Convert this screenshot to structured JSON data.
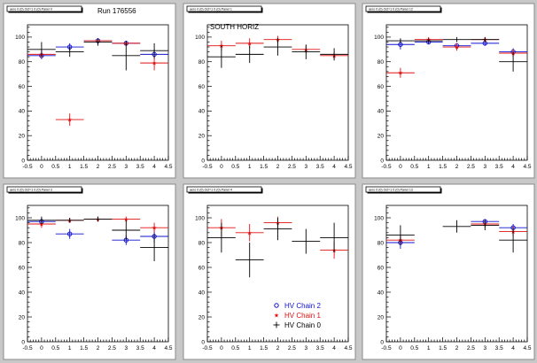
{
  "chart_data": [
    {
      "type": "scatter",
      "title": "aero 0 (0) Oct=1 0 (0) Panel 0",
      "annotation": "Run 176556",
      "xlim": [
        -0.5,
        4.5
      ],
      "ylim": [
        0,
        110
      ],
      "xticks": [
        "-0.5",
        "0",
        "0.5",
        "1",
        "1.5",
        "2",
        "2.5",
        "3",
        "3.5",
        "4",
        "4.5"
      ],
      "yticks": [
        "0",
        "20",
        "40",
        "60",
        "80",
        "100"
      ],
      "series": [
        {
          "name": "HV Chain 2",
          "color": "#1010d0",
          "marker": "circle",
          "points": [
            {
              "x": 0,
              "y": 85,
              "ex": 0.5,
              "ey": 3
            },
            {
              "x": 1,
              "y": 92,
              "ex": 0.5,
              "ey": 3
            },
            {
              "x": 2,
              "y": 97,
              "ex": 0.5,
              "ey": 2
            },
            {
              "x": 3,
              "y": 95,
              "ex": 0.5,
              "ey": 2
            },
            {
              "x": 4,
              "y": 86,
              "ex": 0.5,
              "ey": 4
            }
          ]
        },
        {
          "name": "HV Chain 1",
          "color": "#e01010",
          "marker": "star",
          "points": [
            {
              "x": 0,
              "y": 86,
              "ex": 0.5,
              "ey": 3
            },
            {
              "x": 1,
              "y": 33,
              "ex": 0.5,
              "ey": 5
            },
            {
              "x": 2,
              "y": 97,
              "ex": 0.5,
              "ey": 2
            },
            {
              "x": 3,
              "y": 95,
              "ex": 0.5,
              "ey": 2
            },
            {
              "x": 4,
              "y": 79,
              "ex": 0.5,
              "ey": 6
            }
          ]
        },
        {
          "name": "HV Chain 0",
          "color": "#000000",
          "marker": "cross",
          "points": [
            {
              "x": 0,
              "y": 90,
              "ex": 0.5,
              "ey": 6
            },
            {
              "x": 1,
              "y": 88,
              "ex": 0.5,
              "ey": 4
            },
            {
              "x": 2,
              "y": 96,
              "ex": 0.5,
              "ey": 3
            },
            {
              "x": 3,
              "y": 85,
              "ex": 0.5,
              "ey": 12
            },
            {
              "x": 4,
              "y": 89,
              "ex": 0.5,
              "ey": 6
            }
          ]
        }
      ]
    },
    {
      "type": "scatter",
      "title": "aero 0 (0) Oct=1 0 (0) Panel 1",
      "annotation": "SOUTH HORIZ",
      "xlim": [
        -0.5,
        4.5
      ],
      "ylim": [
        0,
        110
      ],
      "xticks": [
        "-0.5",
        "0",
        "0.5",
        "1",
        "1.5",
        "2",
        "2.5",
        "3",
        "3.5",
        "4",
        "4.5"
      ],
      "yticks": [
        "0",
        "20",
        "40",
        "60",
        "80",
        "100"
      ],
      "series": [
        {
          "name": "HV Chain 1",
          "color": "#e01010",
          "marker": "star",
          "points": [
            {
              "x": 0,
              "y": 93,
              "ex": 0.5,
              "ey": 4
            },
            {
              "x": 1,
              "y": 95,
              "ex": 0.5,
              "ey": 4
            },
            {
              "x": 2,
              "y": 98,
              "ex": 0.5,
              "ey": 3
            },
            {
              "x": 3,
              "y": 90,
              "ex": 0.5,
              "ey": 3
            },
            {
              "x": 4,
              "y": 85,
              "ex": 0.5,
              "ey": 3
            }
          ]
        },
        {
          "name": "HV Chain 0",
          "color": "#000000",
          "marker": "cross",
          "points": [
            {
              "x": 0,
              "y": 84,
              "ex": 0.5,
              "ey": 9
            },
            {
              "x": 1,
              "y": 86,
              "ex": 0.5,
              "ey": 7
            },
            {
              "x": 2,
              "y": 92,
              "ex": 0.5,
              "ey": 7
            },
            {
              "x": 3,
              "y": 88,
              "ex": 0.5,
              "ey": 6
            },
            {
              "x": 4,
              "y": 86,
              "ex": 0.5,
              "ey": 5
            }
          ]
        }
      ]
    },
    {
      "type": "scatter",
      "title": "aero 0 (0) Oct=1 0 (0) Panel 12",
      "xlim": [
        -0.5,
        4.5
      ],
      "ylim": [
        0,
        110
      ],
      "xticks": [
        "-0.5",
        "0",
        "0.5",
        "1",
        "1.5",
        "2",
        "2.5",
        "3",
        "3.5",
        "4",
        "4.5"
      ],
      "yticks": [
        "0",
        "20",
        "40",
        "60",
        "80",
        "100"
      ],
      "series": [
        {
          "name": "HV Chain 2",
          "color": "#1010d0",
          "marker": "circle",
          "points": [
            {
              "x": 0,
              "y": 94,
              "ex": 0.5,
              "ey": 4
            },
            {
              "x": 1,
              "y": 96,
              "ex": 0.5,
              "ey": 2
            },
            {
              "x": 2,
              "y": 93,
              "ex": 0.5,
              "ey": 2
            },
            {
              "x": 3,
              "y": 95,
              "ex": 0.5,
              "ey": 2
            },
            {
              "x": 4,
              "y": 88,
              "ex": 0.5,
              "ey": 3
            }
          ]
        },
        {
          "name": "HV Chain 1",
          "color": "#e01010",
          "marker": "star",
          "points": [
            {
              "x": 0,
              "y": 71,
              "ex": 0.5,
              "ey": 4
            },
            {
              "x": 1,
              "y": 98,
              "ex": 0.5,
              "ey": 2
            },
            {
              "x": 2,
              "y": 92,
              "ex": 0.5,
              "ey": 3
            },
            {
              "x": 3,
              "y": 98,
              "ex": 0.5,
              "ey": 2
            },
            {
              "x": 4,
              "y": 87,
              "ex": 0.5,
              "ey": 3
            }
          ]
        },
        {
          "name": "HV Chain 0",
          "color": "#000000",
          "marker": "cross",
          "points": [
            {
              "x": 0,
              "y": 97,
              "ex": 0.5,
              "ey": 2
            },
            {
              "x": 1,
              "y": 97,
              "ex": 0.5,
              "ey": 2
            },
            {
              "x": 2,
              "y": 98,
              "ex": 0.5,
              "ey": 2
            },
            {
              "x": 3,
              "y": 98,
              "ex": 0.5,
              "ey": 2
            },
            {
              "x": 4,
              "y": 80,
              "ex": 0.5,
              "ey": 8
            }
          ]
        }
      ]
    },
    {
      "type": "scatter",
      "title": "aero 0 (0) Oct=1 0 (0) Panel 3",
      "xlim": [
        -0.5,
        4.5
      ],
      "ylim": [
        0,
        110
      ],
      "xticks": [
        "-0.5",
        "0",
        "0.5",
        "1",
        "1.5",
        "2",
        "2.5",
        "3",
        "3.5",
        "4",
        "4.5"
      ],
      "yticks": [
        "0",
        "20",
        "40",
        "60",
        "80",
        "100"
      ],
      "series": [
        {
          "name": "HV Chain 2",
          "color": "#1010d0",
          "marker": "circle",
          "points": [
            {
              "x": 0,
              "y": 97,
              "ex": 0.5,
              "ey": 3
            },
            {
              "x": 1,
              "y": 87,
              "ex": 0.5,
              "ey": 4
            },
            {
              "x": 3,
              "y": 82,
              "ex": 0.5,
              "ey": 4
            },
            {
              "x": 4,
              "y": 85,
              "ex": 0.5,
              "ey": 5
            }
          ]
        },
        {
          "name": "HV Chain 1",
          "color": "#e01010",
          "marker": "star",
          "points": [
            {
              "x": 0,
              "y": 95,
              "ex": 0.5,
              "ey": 3
            },
            {
              "x": 1,
              "y": 98,
              "ex": 0.5,
              "ey": 2
            },
            {
              "x": 2,
              "y": 99,
              "ex": 0.5,
              "ey": 2
            },
            {
              "x": 3,
              "y": 99,
              "ex": 0.5,
              "ey": 2
            },
            {
              "x": 4,
              "y": 92,
              "ex": 0.5,
              "ey": 4
            }
          ]
        },
        {
          "name": "HV Chain 0",
          "color": "#000000",
          "marker": "cross",
          "points": [
            {
              "x": 0,
              "y": 98,
              "ex": 0.5,
              "ey": 3
            },
            {
              "x": 1,
              "y": 98,
              "ex": 0.5,
              "ey": 2
            },
            {
              "x": 2,
              "y": 99,
              "ex": 0.5,
              "ey": 2
            },
            {
              "x": 3,
              "y": 90,
              "ex": 0.5,
              "ey": 8
            },
            {
              "x": 4,
              "y": 76,
              "ex": 0.5,
              "ey": 11
            }
          ]
        }
      ]
    },
    {
      "type": "scatter",
      "title": "aero 0 (0) Oct=1 0 (0) Panel 4",
      "xlim": [
        -0.5,
        4.5
      ],
      "ylim": [
        0,
        110
      ],
      "xticks": [
        "-0.5",
        "0",
        "0.5",
        "1",
        "1.5",
        "2",
        "2.5",
        "3",
        "3.5",
        "4",
        "4.5"
      ],
      "yticks": [
        "0",
        "20",
        "40",
        "60",
        "80",
        "100"
      ],
      "legend": {
        "placement": "bottom-right",
        "entries": [
          {
            "label": "HV Chain 2",
            "color": "#1010d0",
            "marker": "circle"
          },
          {
            "label": "HV Chain 1",
            "color": "#e01010",
            "marker": "star"
          },
          {
            "label": "HV Chain 0",
            "color": "#000000",
            "marker": "cross"
          }
        ]
      },
      "series": [
        {
          "name": "HV Chain 1",
          "color": "#e01010",
          "marker": "star",
          "points": [
            {
              "x": 0,
              "y": 92,
              "ex": 0.5,
              "ey": 7
            },
            {
              "x": 1,
              "y": 88,
              "ex": 0.5,
              "ey": 7
            },
            {
              "x": 2,
              "y": 96,
              "ex": 0.5,
              "ey": 5
            },
            {
              "x": 4,
              "y": 74,
              "ex": 0.5,
              "ey": 7
            }
          ]
        },
        {
          "name": "HV Chain 0",
          "color": "#000000",
          "marker": "cross",
          "points": [
            {
              "x": 0,
              "y": 84,
              "ex": 0.5,
              "ey": 12
            },
            {
              "x": 1,
              "y": 66,
              "ex": 0.5,
              "ey": 14
            },
            {
              "x": 2,
              "y": 91,
              "ex": 0.5,
              "ey": 9
            },
            {
              "x": 3,
              "y": 81,
              "ex": 0.5,
              "ey": 10
            },
            {
              "x": 4,
              "y": 84,
              "ex": 0.5,
              "ey": 12
            }
          ]
        }
      ]
    },
    {
      "type": "scatter",
      "title": "aero 0 (0) Oct=1 0 (0) Panel 13",
      "xlim": [
        -0.5,
        4.5
      ],
      "ylim": [
        0,
        110
      ],
      "xticks": [
        "-0.5",
        "0",
        "0.5",
        "1",
        "1.5",
        "2",
        "2.5",
        "3",
        "3.5",
        "4",
        "4.5"
      ],
      "yticks": [
        "0",
        "20",
        "40",
        "60",
        "80",
        "100"
      ],
      "series": [
        {
          "name": "HV Chain 2",
          "color": "#1010d0",
          "marker": "circle",
          "points": [
            {
              "x": 0,
              "y": 80,
              "ex": 0.5,
              "ey": 5
            },
            {
              "x": 3,
              "y": 97,
              "ex": 0.5,
              "ey": 2
            },
            {
              "x": 4,
              "y": 92,
              "ex": 0.5,
              "ey": 3
            }
          ]
        },
        {
          "name": "HV Chain 1",
          "color": "#e01010",
          "marker": "star",
          "points": [
            {
              "x": 0,
              "y": 82,
              "ex": 0.5,
              "ey": 4
            },
            {
              "x": 3,
              "y": 95,
              "ex": 0.5,
              "ey": 3
            },
            {
              "x": 4,
              "y": 89,
              "ex": 0.5,
              "ey": 4
            }
          ]
        },
        {
          "name": "HV Chain 0",
          "color": "#000000",
          "marker": "cross",
          "points": [
            {
              "x": 0,
              "y": 86,
              "ex": 0.5,
              "ey": 8
            },
            {
              "x": 2,
              "y": 93,
              "ex": 0.5,
              "ey": 5
            },
            {
              "x": 3,
              "y": 94,
              "ex": 0.5,
              "ey": 4
            },
            {
              "x": 4,
              "y": 82,
              "ex": 0.5,
              "ey": 10
            }
          ]
        }
      ]
    }
  ]
}
